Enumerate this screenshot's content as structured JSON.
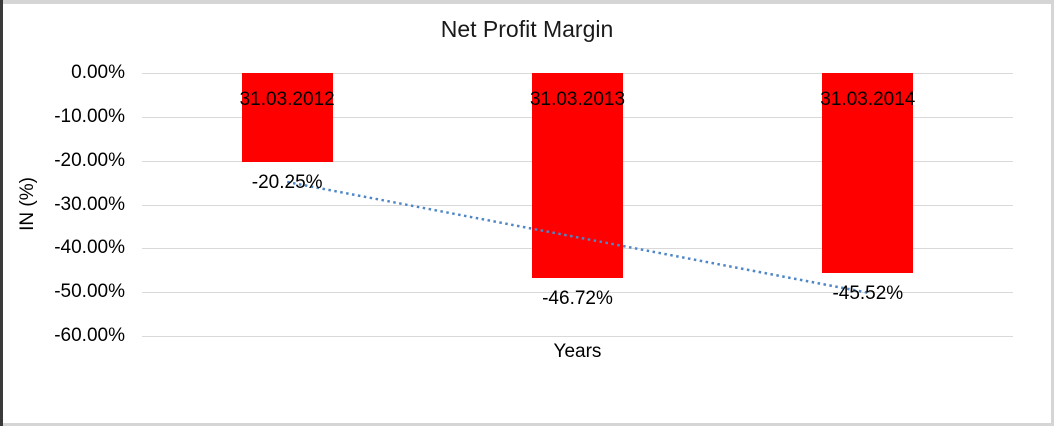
{
  "chart_data": {
    "type": "bar",
    "title": "Net Profit Margin",
    "xlabel": "Years",
    "ylabel": "IN (%)",
    "categories": [
      "31.03.2012",
      "31.03.2013",
      "31.03.2014"
    ],
    "values": [
      -20.25,
      -46.72,
      -45.52
    ],
    "data_labels": [
      "-20.25%",
      "-46.72%",
      "-45.52%"
    ],
    "ytick_labels": [
      "0.00%",
      "-10.00%",
      "-20.00%",
      "-30.00%",
      "-40.00%",
      "-50.00%",
      "-60.00%"
    ],
    "ylim": [
      -60,
      0
    ],
    "grid": true,
    "legend": "none",
    "bar_color": "#FF0000",
    "gridline_color": "#D9D9D9",
    "text_color": "#000000",
    "trendline": {
      "type": "linear",
      "style": "dotted",
      "color": "#4E86C8",
      "start_value": -24.86,
      "end_value": -50.13
    }
  }
}
